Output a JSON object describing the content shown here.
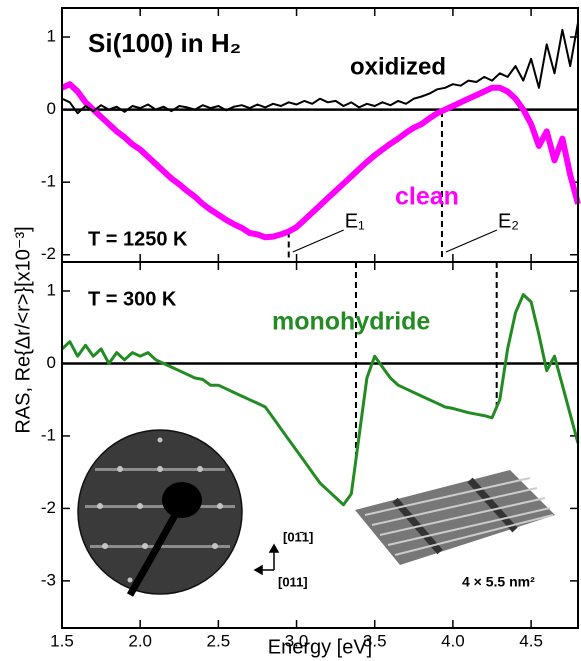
{
  "chart_data": [
    {
      "type": "line",
      "title": "Si(100) in H₂",
      "ylabel": "RAS, Re{Δr/<r>}[x10⁻³]",
      "temperature": "T = 1250 K",
      "xlim": [
        1.5,
        4.8
      ],
      "ylim": [
        -2.1,
        1.4
      ],
      "yticks": [
        -2,
        -1,
        0,
        1
      ],
      "zero_line": true,
      "markers": [
        {
          "label": "E₁",
          "x": 2.95
        },
        {
          "label": "E₂",
          "x": 3.93
        }
      ],
      "x": [
        1.5,
        1.55,
        1.6,
        1.65,
        1.7,
        1.75,
        1.8,
        1.85,
        1.9,
        1.95,
        2.0,
        2.05,
        2.1,
        2.15,
        2.2,
        2.25,
        2.3,
        2.35,
        2.4,
        2.45,
        2.5,
        2.55,
        2.6,
        2.65,
        2.7,
        2.75,
        2.8,
        2.85,
        2.9,
        2.95,
        3.0,
        3.05,
        3.1,
        3.15,
        3.2,
        3.25,
        3.3,
        3.35,
        3.4,
        3.45,
        3.5,
        3.55,
        3.6,
        3.65,
        3.7,
        3.75,
        3.8,
        3.85,
        3.9,
        3.95,
        4.0,
        4.05,
        4.1,
        4.15,
        4.2,
        4.25,
        4.3,
        4.35,
        4.4,
        4.45,
        4.5,
        4.55,
        4.6,
        4.65,
        4.7,
        4.75,
        4.8
      ],
      "series": [
        {
          "name": "clean",
          "color": "#ff00ff",
          "width": 6,
          "values": [
            0.3,
            0.35,
            0.25,
            0.1,
            0.0,
            -0.1,
            -0.2,
            -0.3,
            -0.38,
            -0.48,
            -0.55,
            -0.65,
            -0.75,
            -0.85,
            -0.95,
            -1.03,
            -1.12,
            -1.2,
            -1.3,
            -1.38,
            -1.45,
            -1.52,
            -1.58,
            -1.63,
            -1.7,
            -1.72,
            -1.76,
            -1.75,
            -1.72,
            -1.68,
            -1.62,
            -1.52,
            -1.42,
            -1.32,
            -1.22,
            -1.12,
            -1.02,
            -0.92,
            -0.82,
            -0.72,
            -0.63,
            -0.55,
            -0.47,
            -0.4,
            -0.32,
            -0.25,
            -0.2,
            -0.12,
            -0.05,
            0.0,
            0.05,
            0.1,
            0.15,
            0.2,
            0.25,
            0.3,
            0.3,
            0.25,
            0.15,
            0.0,
            -0.2,
            -0.5,
            -0.3,
            -0.7,
            -0.4,
            -0.9,
            -1.3
          ]
        },
        {
          "name": "oxidized",
          "color": "#000000",
          "width": 2,
          "values": [
            0.15,
            0.1,
            -0.05,
            0.05,
            -0.02,
            0.06,
            0.0,
            0.04,
            -0.03,
            0.05,
            0.02,
            0.07,
            0.0,
            0.04,
            -0.02,
            0.05,
            0.03,
            0.0,
            0.06,
            0.02,
            0.05,
            -0.01,
            0.04,
            0.06,
            0.02,
            0.07,
            0.03,
            0.08,
            0.05,
            0.1,
            0.07,
            0.12,
            0.08,
            0.15,
            0.1,
            0.12,
            0.05,
            0.1,
            0.03,
            0.08,
            0.05,
            0.1,
            0.06,
            0.12,
            0.08,
            0.15,
            0.18,
            0.22,
            0.28,
            0.3,
            0.35,
            0.33,
            0.4,
            0.38,
            0.45,
            0.4,
            0.5,
            0.45,
            0.6,
            0.4,
            0.7,
            0.3,
            0.9,
            0.5,
            1.1,
            0.6,
            1.2
          ]
        }
      ]
    },
    {
      "type": "line",
      "temperature": "T = 300 K",
      "xlabel": "Energy [eV]",
      "xlim": [
        1.5,
        4.8
      ],
      "ylim": [
        -3.65,
        1.4
      ],
      "yticks": [
        -3,
        -2,
        -1,
        0,
        1
      ],
      "zero_line": true,
      "xticks": [
        1.5,
        {
          "value": 2,
          "label": "2.0"
        },
        2.5,
        {
          "value": 3,
          "label": "3.0"
        },
        3.5,
        {
          "value": 4,
          "label": "4.0"
        },
        4.5
      ],
      "markers": [
        {
          "x": 3.38
        },
        {
          "x": 4.28
        }
      ],
      "inset_labels": {
        "direction_1": "[01̄1]",
        "direction_2": "[011]",
        "scale": "4 × 5.5 nm²"
      },
      "x": [
        1.5,
        1.55,
        1.6,
        1.65,
        1.7,
        1.75,
        1.8,
        1.85,
        1.9,
        1.95,
        2.0,
        2.05,
        2.1,
        2.15,
        2.2,
        2.25,
        2.3,
        2.35,
        2.4,
        2.45,
        2.5,
        2.55,
        2.6,
        2.65,
        2.7,
        2.75,
        2.8,
        2.85,
        2.9,
        2.95,
        3.0,
        3.05,
        3.1,
        3.15,
        3.2,
        3.25,
        3.3,
        3.35,
        3.4,
        3.45,
        3.5,
        3.55,
        3.6,
        3.65,
        3.7,
        3.75,
        3.8,
        3.85,
        3.9,
        3.95,
        4.0,
        4.05,
        4.1,
        4.15,
        4.2,
        4.25,
        4.3,
        4.35,
        4.4,
        4.45,
        4.5,
        4.55,
        4.6,
        4.65,
        4.7,
        4.75,
        4.8
      ],
      "series": [
        {
          "name": "monohydride",
          "color": "#228b22",
          "width": 3,
          "values": [
            0.2,
            0.3,
            0.1,
            0.25,
            0.1,
            0.2,
            0.0,
            0.15,
            0.05,
            0.15,
            0.1,
            0.15,
            0.05,
            0.0,
            -0.05,
            -0.1,
            -0.15,
            -0.2,
            -0.22,
            -0.3,
            -0.3,
            -0.35,
            -0.4,
            -0.45,
            -0.5,
            -0.55,
            -0.6,
            -0.75,
            -0.9,
            -1.05,
            -1.2,
            -1.35,
            -1.5,
            -1.65,
            -1.75,
            -1.85,
            -1.95,
            -1.8,
            -1.0,
            -0.2,
            0.1,
            -0.05,
            -0.2,
            -0.3,
            -0.35,
            -0.4,
            -0.45,
            -0.5,
            -0.55,
            -0.6,
            -0.62,
            -0.65,
            -0.68,
            -0.7,
            -0.72,
            -0.75,
            -0.5,
            0.2,
            0.7,
            0.95,
            0.85,
            0.4,
            -0.1,
            0.1,
            -0.3,
            -0.7,
            -1.1
          ]
        }
      ]
    }
  ]
}
